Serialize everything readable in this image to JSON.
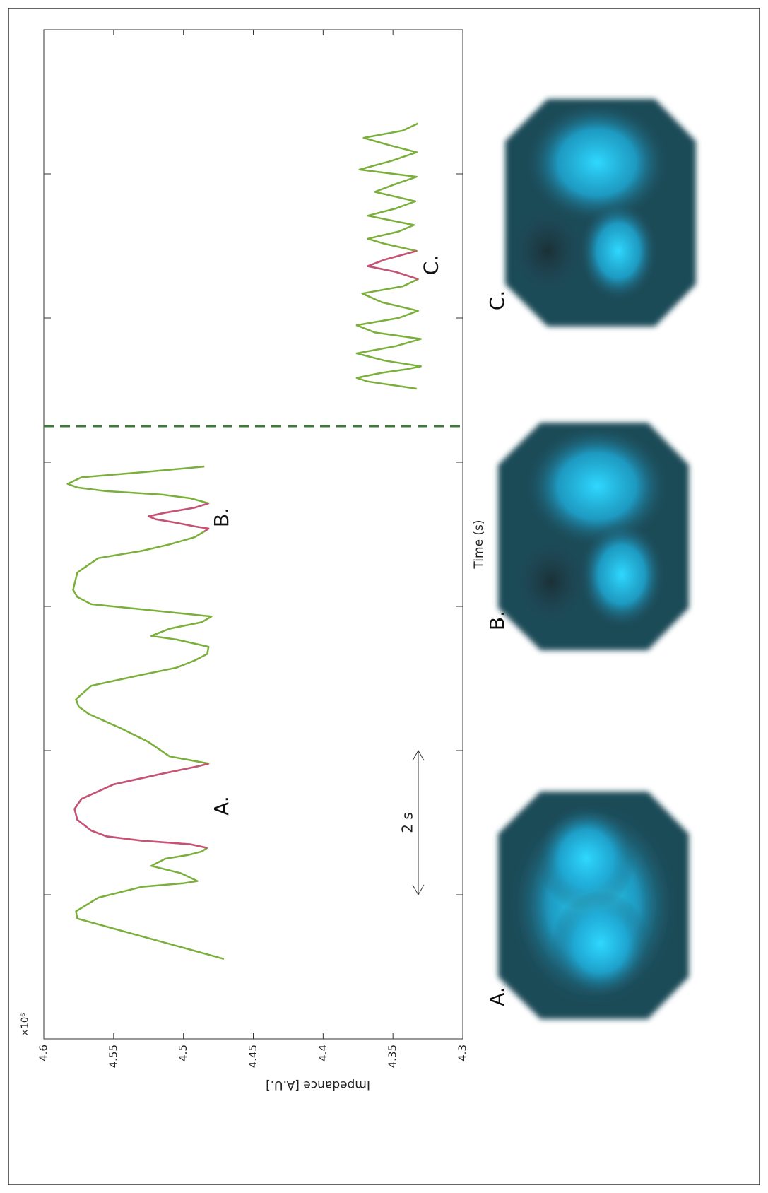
{
  "chart_data": {
    "type": "line",
    "x_label": "Time (s)",
    "y_label": "Impedance [A.U.]",
    "y_multiplier": "×10⁶",
    "xlim": [
      0,
      14
    ],
    "xticks": [
      2,
      4,
      6,
      8,
      10,
      12
    ],
    "ylim": [
      4.3,
      4.6
    ],
    "yticks": [
      4.6,
      4.55,
      4.5,
      4.45,
      4.4,
      4.35,
      4.3
    ],
    "vline": 8.5,
    "scale_bar": {
      "label": "2 s",
      "x": [
        2,
        4
      ]
    },
    "annotations": [
      "A.",
      "B.",
      "C."
    ],
    "series": [
      {
        "color": "#7aaf3a",
        "x": [
          1.11,
          1.67,
          1.77,
          1.96,
          2.11,
          2.16,
          2.19,
          2.3,
          2.4,
          2.5,
          2.55,
          2.6,
          2.65,
          2.7,
          2.75,
          2.81,
          2.89,
          3.04,
          3.19,
          3.33,
          3.53,
          3.68,
          3.78,
          3.82,
          3.92,
          4.12,
          4.31,
          4.51,
          4.61,
          4.71,
          4.9,
          5.05,
          5.15,
          5.25,
          5.34,
          5.44,
          5.54,
          5.59,
          5.69,
          5.78,
          5.86,
          5.93,
          6.03,
          6.13,
          6.23,
          6.47,
          6.67,
          6.77,
          6.86,
          6.96,
          7.04,
          7.08,
          7.11,
          7.16,
          7.21,
          7.25,
          7.3,
          7.37,
          7.43,
          7.5,
          7.55,
          7.6,
          7.65,
          7.7,
          7.79,
          7.86,
          7.94
        ],
        "values": [
          4.471,
          4.576,
          4.577,
          4.561,
          4.53,
          4.5,
          4.49,
          4.502,
          4.523,
          4.513,
          4.497,
          4.487,
          4.483,
          4.495,
          4.53,
          4.555,
          4.566,
          4.576,
          4.578,
          4.573,
          4.55,
          4.515,
          4.49,
          4.482,
          4.51,
          4.525,
          4.545,
          4.568,
          4.575,
          4.577,
          4.566,
          4.53,
          4.505,
          4.492,
          4.483,
          4.482,
          4.505,
          4.523,
          4.51,
          4.487,
          4.48,
          4.515,
          4.566,
          4.576,
          4.579,
          4.576,
          4.561,
          4.53,
          4.51,
          4.492,
          4.485,
          4.482,
          4.492,
          4.505,
          4.52,
          4.525,
          4.513,
          4.492,
          4.482,
          4.495,
          4.515,
          4.556,
          4.576,
          4.583,
          4.573,
          4.53,
          4.485
        ]
      },
      {
        "color": "#7aaf3a",
        "x": [
          9.02,
          9.12,
          9.17,
          9.24,
          9.29,
          9.33,
          9.41,
          9.51,
          9.61,
          9.71,
          9.8,
          9.9,
          10.0,
          10.1,
          10.22,
          10.34,
          10.44,
          10.54,
          10.64,
          10.72,
          10.81,
          10.93,
          11.03,
          11.1,
          11.2,
          11.29,
          11.42,
          11.52,
          11.62,
          11.75,
          11.86,
          11.96,
          12.06,
          12.18,
          12.3,
          12.4,
          12.5,
          12.6,
          12.7
        ],
        "values": [
          4.333,
          4.368,
          4.376,
          4.358,
          4.34,
          4.33,
          4.356,
          4.376,
          4.348,
          4.33,
          4.363,
          4.376,
          4.346,
          4.332,
          4.358,
          4.372,
          4.343,
          4.332,
          4.348,
          4.368,
          4.356,
          4.333,
          4.356,
          4.368,
          4.346,
          4.335,
          4.368,
          4.348,
          4.334,
          4.363,
          4.348,
          4.333,
          4.374,
          4.351,
          4.333,
          4.353,
          4.371,
          4.343,
          4.332
        ]
      },
      {
        "color": "#c9507a",
        "x": [
          2.65,
          2.7,
          2.75,
          2.81,
          2.89,
          3.04,
          3.19,
          3.33,
          3.53,
          3.68,
          3.78,
          3.82
        ],
        "values": [
          4.483,
          4.495,
          4.53,
          4.555,
          4.566,
          4.576,
          4.578,
          4.573,
          4.55,
          4.515,
          4.49,
          4.482
        ]
      },
      {
        "color": "#c9507a",
        "x": [
          7.04,
          7.08,
          7.11,
          7.16,
          7.21,
          7.25,
          7.3,
          7.37,
          7.43
        ],
        "values": [
          4.485,
          4.482,
          4.492,
          4.505,
          4.52,
          4.525,
          4.513,
          4.492,
          4.482
        ]
      },
      {
        "color": "#c9507a",
        "x": [
          10.54,
          10.64,
          10.72,
          10.81,
          10.93
        ],
        "values": [
          4.332,
          4.348,
          4.368,
          4.356,
          4.333
        ]
      }
    ]
  },
  "images": {
    "labels": [
      "A.",
      "B.",
      "C."
    ]
  }
}
